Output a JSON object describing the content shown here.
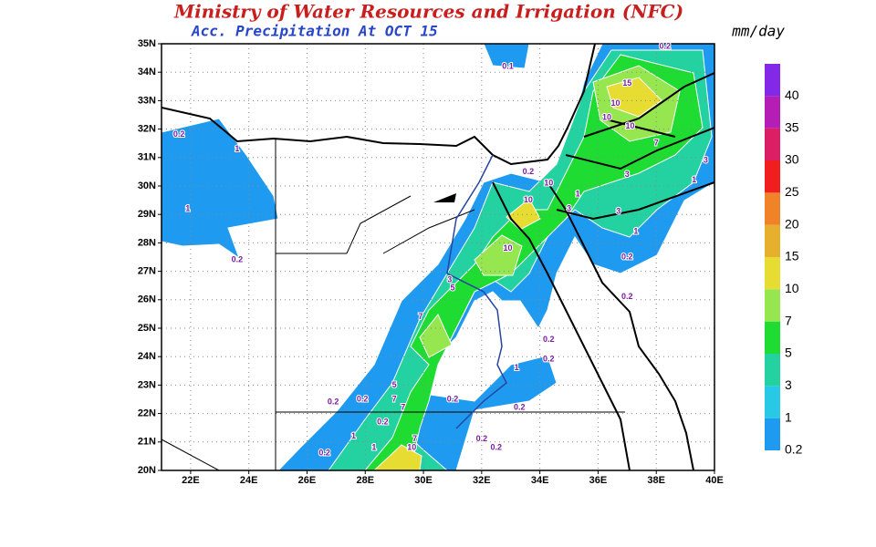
{
  "header": {
    "title": "Ministry of Water Resources and Irrigation (NFC)",
    "subtitle": "Acc. Precipitation  At OCT 15",
    "units": "mm/day"
  },
  "map": {
    "lon_range": [
      21,
      40
    ],
    "lat_range": [
      20,
      35
    ],
    "lon_ticks": [
      {
        "value": 22,
        "label": "22E"
      },
      {
        "value": 24,
        "label": "24E"
      },
      {
        "value": 26,
        "label": "26E"
      },
      {
        "value": 28,
        "label": "28E"
      },
      {
        "value": 30,
        "label": "30E"
      },
      {
        "value": 32,
        "label": "32E"
      },
      {
        "value": 34,
        "label": "34E"
      },
      {
        "value": 36,
        "label": "36E"
      },
      {
        "value": 38,
        "label": "38E"
      },
      {
        "value": 40,
        "label": "40E"
      }
    ],
    "lat_ticks": [
      {
        "value": 20,
        "label": "20N"
      },
      {
        "value": 21,
        "label": "21N"
      },
      {
        "value": 22,
        "label": "22N"
      },
      {
        "value": 23,
        "label": "23N"
      },
      {
        "value": 24,
        "label": "24N"
      },
      {
        "value": 25,
        "label": "25N"
      },
      {
        "value": 26,
        "label": "26N"
      },
      {
        "value": 27,
        "label": "27N"
      },
      {
        "value": 28,
        "label": "28N"
      },
      {
        "value": 29,
        "label": "29N"
      },
      {
        "value": 30,
        "label": "30N"
      },
      {
        "value": 31,
        "label": "31N"
      },
      {
        "value": 32,
        "label": "32N"
      },
      {
        "value": 33,
        "label": "33N"
      },
      {
        "value": 34,
        "label": "34N"
      },
      {
        "value": 35,
        "label": "35N"
      }
    ],
    "contour_labels": [
      {
        "text": "0.2",
        "lon": 21.6,
        "lat": 31.8
      },
      {
        "text": "1",
        "lon": 23.6,
        "lat": 31.3
      },
      {
        "text": "1",
        "lon": 21.9,
        "lat": 29.2
      },
      {
        "text": "0.2",
        "lon": 23.6,
        "lat": 27.4
      },
      {
        "text": "0.1",
        "lon": 32.9,
        "lat": 34.2
      },
      {
        "text": "0.2",
        "lon": 38.3,
        "lat": 34.9
      },
      {
        "text": "15",
        "lon": 37.0,
        "lat": 33.6
      },
      {
        "text": "10",
        "lon": 36.6,
        "lat": 32.9
      },
      {
        "text": "10",
        "lon": 36.3,
        "lat": 32.4
      },
      {
        "text": "10",
        "lon": 37.1,
        "lat": 32.1
      },
      {
        "text": "7",
        "lon": 38.0,
        "lat": 31.5
      },
      {
        "text": "3",
        "lon": 39.7,
        "lat": 30.9
      },
      {
        "text": "1",
        "lon": 39.3,
        "lat": 30.2
      },
      {
        "text": "3",
        "lon": 37.0,
        "lat": 30.4
      },
      {
        "text": "3",
        "lon": 36.7,
        "lat": 29.1
      },
      {
        "text": "1",
        "lon": 37.3,
        "lat": 28.4
      },
      {
        "text": "0.2",
        "lon": 37.0,
        "lat": 27.5
      },
      {
        "text": "0.2",
        "lon": 37.0,
        "lat": 26.1
      },
      {
        "text": "0.2",
        "lon": 33.6,
        "lat": 30.5
      },
      {
        "text": "10",
        "lon": 34.3,
        "lat": 30.1
      },
      {
        "text": "10",
        "lon": 33.6,
        "lat": 29.5
      },
      {
        "text": "1",
        "lon": 35.3,
        "lat": 29.7
      },
      {
        "text": "3",
        "lon": 35.0,
        "lat": 29.2
      },
      {
        "text": "10",
        "lon": 32.9,
        "lat": 27.8
      },
      {
        "text": "3",
        "lon": 30.9,
        "lat": 26.7
      },
      {
        "text": "5",
        "lon": 31.0,
        "lat": 26.4
      },
      {
        "text": "7",
        "lon": 29.9,
        "lat": 25.4
      },
      {
        "text": "0.2",
        "lon": 34.3,
        "lat": 24.6
      },
      {
        "text": "0.2",
        "lon": 34.3,
        "lat": 23.9
      },
      {
        "text": "1",
        "lon": 33.2,
        "lat": 23.6
      },
      {
        "text": "0.2",
        "lon": 26.9,
        "lat": 22.4
      },
      {
        "text": "0.2",
        "lon": 27.9,
        "lat": 22.5
      },
      {
        "text": "5",
        "lon": 29.0,
        "lat": 23.0
      },
      {
        "text": "7",
        "lon": 29.0,
        "lat": 22.5
      },
      {
        "text": "7",
        "lon": 29.3,
        "lat": 22.2
      },
      {
        "text": "0.2",
        "lon": 31.0,
        "lat": 22.5
      },
      {
        "text": "0.2",
        "lon": 33.3,
        "lat": 22.2
      },
      {
        "text": "0.2",
        "lon": 28.6,
        "lat": 21.7
      },
      {
        "text": "1",
        "lon": 27.6,
        "lat": 21.2
      },
      {
        "text": "1",
        "lon": 28.3,
        "lat": 20.8
      },
      {
        "text": "7",
        "lon": 29.7,
        "lat": 21.1
      },
      {
        "text": "10",
        "lon": 29.6,
        "lat": 20.8
      },
      {
        "text": "0.2",
        "lon": 32.0,
        "lat": 21.1
      },
      {
        "text": "0.2",
        "lon": 32.5,
        "lat": 20.8
      },
      {
        "text": "0.2",
        "lon": 26.6,
        "lat": 20.6
      }
    ]
  },
  "colorbar": {
    "levels": [
      0.2,
      1,
      3,
      5,
      7,
      10,
      15,
      20,
      25,
      30,
      35,
      40
    ],
    "colors": [
      "#1e9bf0",
      "#28c8e6",
      "#23d2a0",
      "#1edc32",
      "#96e650",
      "#e6dc32",
      "#e6af2d",
      "#f08228",
      "#f01e1e",
      "#dc1e64",
      "#b41eb4",
      "#8228e6"
    ]
  }
}
